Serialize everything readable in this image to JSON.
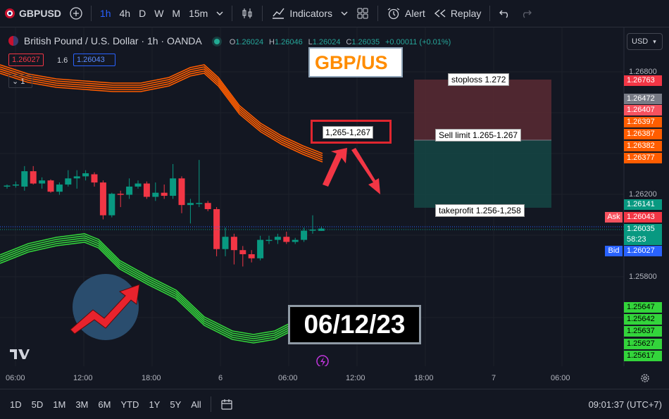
{
  "toolbar": {
    "symbol": "GBPUSD",
    "intervals": [
      "1h",
      "4h",
      "D",
      "W",
      "M",
      "15m"
    ],
    "active_interval": "1h",
    "indicators_label": "Indicators",
    "alert_label": "Alert",
    "replay_label": "Replay"
  },
  "legend": {
    "title": "British Pound / U.S. Dollar · 1h · OANDA",
    "o_label": "O",
    "o_value": "1.26024",
    "h_label": "H",
    "h_value": "1.26046",
    "l_label": "L",
    "l_value": "1.26024",
    "c_label": "C",
    "c_value": "1.26035",
    "change": "+0.00011 (+0.01%)",
    "sell_price": "1.26027",
    "spread": "1.6",
    "buy_price": "1.26043",
    "collapse_count": "1"
  },
  "currency": "USD",
  "annotations": {
    "title_box": "GBP/US",
    "zone_label": "1,265-1,267",
    "stoploss": "stoploss 1.272",
    "sell_limit": "Sell limit 1.265-1.267",
    "takeprofit": "takeprofit 1.256-1,258",
    "date": "06/12/23"
  },
  "price_axis": {
    "labels": [
      "1.26800",
      "1.26200",
      "1.25800"
    ],
    "tags": [
      {
        "text": "1.26763",
        "color": "#f23645"
      },
      {
        "text": "1.26472",
        "color": "#787b86"
      },
      {
        "text": "1.26407",
        "color": "#f7525f"
      },
      {
        "text": "1.26397",
        "color": "#ff5d00"
      },
      {
        "text": "1.26387",
        "color": "#ff5d00"
      },
      {
        "text": "1.26382",
        "color": "#ff5d00"
      },
      {
        "text": "1.26377",
        "color": "#ff5d00"
      },
      {
        "text": "1.26141",
        "color": "#089981"
      },
      {
        "text": "1.26043",
        "color": "#f23645"
      },
      {
        "text": "1.26035",
        "color": "#089981"
      },
      {
        "text": "58:23",
        "color": "#089981"
      },
      {
        "text": "1.26027",
        "color": "#2962ff"
      },
      {
        "text": "1.25647",
        "color": "#33d43b"
      },
      {
        "text": "1.25642",
        "color": "#33d43b"
      },
      {
        "text": "1.25637",
        "color": "#33d43b"
      },
      {
        "text": "1.25627",
        "color": "#33d43b"
      },
      {
        "text": "1.25617",
        "color": "#33d43b"
      }
    ],
    "ask_label": "Ask",
    "bid_label": "Bid"
  },
  "time_axis": [
    "06:00",
    "12:00",
    "18:00",
    "6",
    "06:00",
    "12:00",
    "18:00",
    "7",
    "06:00"
  ],
  "ranges": [
    "1D",
    "5D",
    "1M",
    "3M",
    "6M",
    "YTD",
    "1Y",
    "5Y",
    "All"
  ],
  "clock": "09:01:37 (UTC+7)",
  "chart_data": {
    "type": "candlestick",
    "candles": [
      {
        "o": 1.2624,
        "h": 1.2625,
        "l": 1.2623,
        "c": 1.26245
      },
      {
        "o": 1.26245,
        "h": 1.26265,
        "l": 1.26235,
        "c": 1.2625
      },
      {
        "o": 1.2624,
        "h": 1.2634,
        "l": 1.2622,
        "c": 1.26315
      },
      {
        "o": 1.26315,
        "h": 1.2634,
        "l": 1.2625,
        "c": 1.26255
      },
      {
        "o": 1.26255,
        "h": 1.26285,
        "l": 1.2623,
        "c": 1.2627
      },
      {
        "o": 1.2627,
        "h": 1.26275,
        "l": 1.2621,
        "c": 1.26215
      },
      {
        "o": 1.26215,
        "h": 1.2626,
        "l": 1.262,
        "c": 1.2625
      },
      {
        "o": 1.2625,
        "h": 1.2632,
        "l": 1.2624,
        "c": 1.2628
      },
      {
        "o": 1.2628,
        "h": 1.2632,
        "l": 1.2623,
        "c": 1.2629
      },
      {
        "o": 1.2629,
        "h": 1.2632,
        "l": 1.2627,
        "c": 1.26305
      },
      {
        "o": 1.263,
        "h": 1.2631,
        "l": 1.2624,
        "c": 1.2626
      },
      {
        "o": 1.2626,
        "h": 1.2627,
        "l": 1.2608,
        "c": 1.261
      },
      {
        "o": 1.261,
        "h": 1.2621,
        "l": 1.2609,
        "c": 1.26205
      },
      {
        "o": 1.26205,
        "h": 1.2622,
        "l": 1.2614,
        "c": 1.262
      },
      {
        "o": 1.262,
        "h": 1.2628,
        "l": 1.2618,
        "c": 1.2624
      },
      {
        "o": 1.2624,
        "h": 1.2627,
        "l": 1.2623,
        "c": 1.26255
      },
      {
        "o": 1.26255,
        "h": 1.26265,
        "l": 1.2618,
        "c": 1.2619
      },
      {
        "o": 1.2619,
        "h": 1.2626,
        "l": 1.2617,
        "c": 1.2621
      },
      {
        "o": 1.2621,
        "h": 1.2625,
        "l": 1.2618,
        "c": 1.26195
      },
      {
        "o": 1.26195,
        "h": 1.2635,
        "l": 1.2618,
        "c": 1.2628
      },
      {
        "o": 1.2628,
        "h": 1.2629,
        "l": 1.2611,
        "c": 1.2615
      },
      {
        "o": 1.2615,
        "h": 1.2618,
        "l": 1.2606,
        "c": 1.2616
      },
      {
        "o": 1.2616,
        "h": 1.2637,
        "l": 1.2614,
        "c": 1.2616
      },
      {
        "o": 1.2616,
        "h": 1.2617,
        "l": 1.2612,
        "c": 1.2613
      },
      {
        "o": 1.2613,
        "h": 1.2614,
        "l": 1.259,
        "c": 1.25935
      },
      {
        "o": 1.25935,
        "h": 1.2604,
        "l": 1.259,
        "c": 1.25995
      },
      {
        "o": 1.25995,
        "h": 1.2601,
        "l": 1.2586,
        "c": 1.2593
      },
      {
        "o": 1.2593,
        "h": 1.2595,
        "l": 1.2585,
        "c": 1.2591
      },
      {
        "o": 1.2591,
        "h": 1.2593,
        "l": 1.2587,
        "c": 1.2589
      },
      {
        "o": 1.2589,
        "h": 1.26,
        "l": 1.2588,
        "c": 1.2598
      },
      {
        "o": 1.2598,
        "h": 1.26,
        "l": 1.2596,
        "c": 1.2598
      },
      {
        "o": 1.2598,
        "h": 1.2601,
        "l": 1.2596,
        "c": 1.25995
      },
      {
        "o": 1.25995,
        "h": 1.2602,
        "l": 1.2596,
        "c": 1.2597
      },
      {
        "o": 1.2597,
        "h": 1.2599,
        "l": 1.2596,
        "c": 1.2598
      },
      {
        "o": 1.2598,
        "h": 1.2604,
        "l": 1.2597,
        "c": 1.26025
      },
      {
        "o": 1.26025,
        "h": 1.261,
        "l": 1.2601,
        "c": 1.2603
      },
      {
        "o": 1.26024,
        "h": 1.26046,
        "l": 1.26024,
        "c": 1.26035
      }
    ]
  }
}
